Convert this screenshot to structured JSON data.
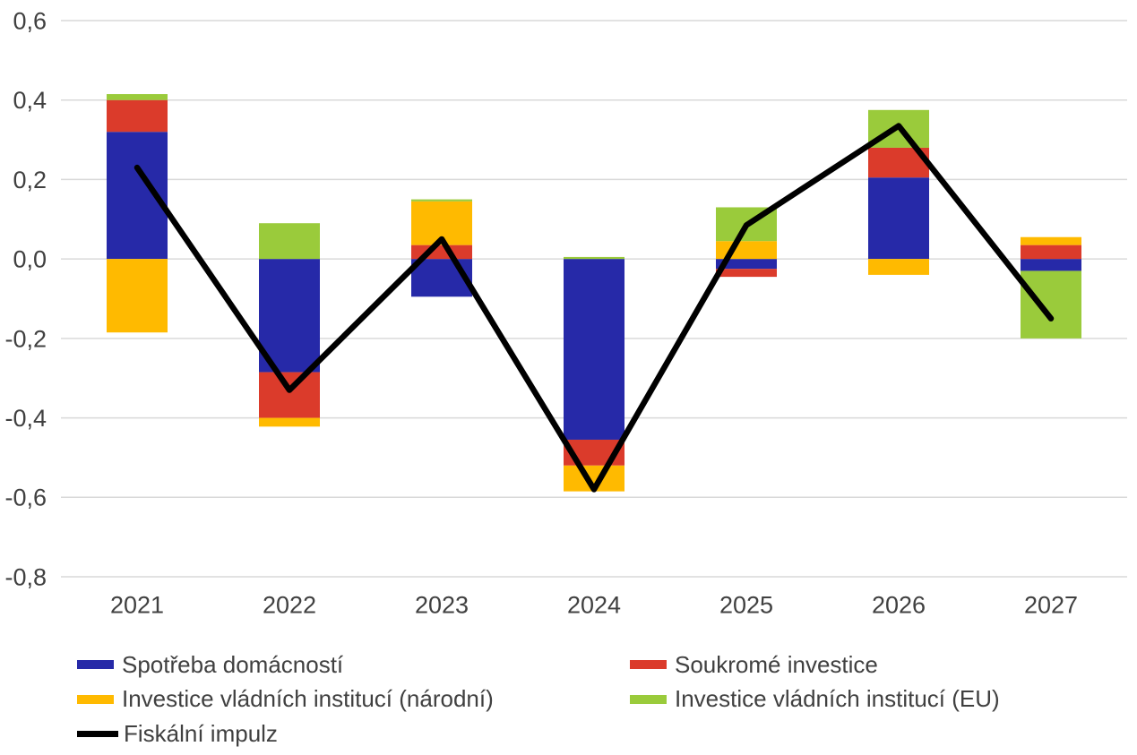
{
  "chart_data": {
    "type": "bar",
    "stacked": true,
    "title": "",
    "xlabel": "",
    "ylabel": "",
    "categories": [
      "2021",
      "2022",
      "2023",
      "2024",
      "2025",
      "2026",
      "2027"
    ],
    "series": [
      {
        "name": "Spotřeba domácností",
        "color": "#2629A8",
        "values": [
          0.32,
          -0.285,
          -0.095,
          -0.455,
          -0.025,
          0.205,
          -0.03
        ]
      },
      {
        "name": "Soukromé investice",
        "color": "#DB3B2B",
        "values": [
          0.08,
          -0.115,
          0.035,
          -0.065,
          -0.02,
          0.075,
          0.035
        ]
      },
      {
        "name": "Investice vládních institucí (národní)",
        "color": "#FFBA00",
        "values": [
          -0.185,
          -0.022,
          0.11,
          -0.065,
          0.045,
          -0.04,
          0.02
        ]
      },
      {
        "name": "Investice vládních institucí (EU)",
        "color": "#9ACB3B",
        "values": [
          0.015,
          0.09,
          0.005,
          0.005,
          0.085,
          0.095,
          -0.17
        ]
      }
    ],
    "line_series": {
      "name": "Fiskální impulz",
      "color": "#000000",
      "values": [
        0.23,
        -0.33,
        0.05,
        -0.58,
        0.085,
        0.335,
        -0.15
      ]
    },
    "ylim": [
      -0.8,
      0.6
    ],
    "ytick_step": 0.2,
    "y_ticks": [
      "0,6",
      "0,4",
      "0,2",
      "0,0",
      "-0,2",
      "-0,4",
      "-0,6",
      "-0,8"
    ],
    "grid": true,
    "legend_position": "bottom",
    "grid_color": "#D9D9D9",
    "text_color": "#404040",
    "background_color": "#FFFFFF"
  }
}
